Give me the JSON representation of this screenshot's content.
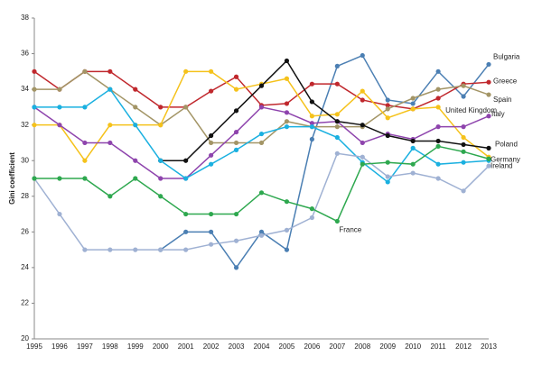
{
  "chart_data": {
    "type": "line",
    "y_label": "Gini coefficient",
    "categories": [
      "1995",
      "1996",
      "1997",
      "1998",
      "1999",
      "2000",
      "2001",
      "2002",
      "2003",
      "2004",
      "2005",
      "2006",
      "2007",
      "2008",
      "2009",
      "2010",
      "2011",
      "2012",
      "2013"
    ],
    "ylim": [
      20,
      38
    ],
    "yticks": [
      20,
      22,
      24,
      26,
      28,
      30,
      32,
      34,
      36,
      38
    ],
    "grid": false,
    "series": [
      {
        "name": "Bulgaria",
        "color": "#4b7fb3",
        "values": [
          null,
          null,
          null,
          null,
          null,
          25,
          26,
          26,
          24,
          26,
          25,
          31.2,
          35.3,
          35.9,
          33.4,
          33.2,
          35.0,
          33.6,
          35.4
        ]
      },
      {
        "name": "Greece",
        "color": "#c0282d",
        "values": [
          35,
          34,
          35,
          35,
          34,
          33,
          33,
          33.9,
          34.7,
          33.1,
          33.2,
          34.3,
          34.3,
          33.4,
          33.1,
          32.9,
          33.5,
          34.3,
          34.4
        ]
      },
      {
        "name": "Spain",
        "color": "#a39566",
        "values": [
          34,
          34,
          35,
          34,
          33,
          32,
          33,
          31,
          31,
          31,
          32.2,
          31.9,
          31.9,
          31.9,
          32.9,
          33.5,
          34.0,
          34.2,
          33.7
        ]
      },
      {
        "name": "United Kingdom",
        "color": "#f5c21b",
        "values": [
          32,
          32,
          30,
          32,
          32,
          32,
          35,
          35,
          34,
          34.3,
          34.6,
          32.5,
          32.6,
          33.9,
          32.4,
          32.9,
          33.0,
          31.3,
          30.2
        ]
      },
      {
        "name": "Italy",
        "color": "#8e44ad",
        "values": [
          33,
          32,
          31,
          31,
          30,
          29,
          29,
          30.3,
          31.6,
          33.0,
          32.7,
          32.1,
          32.2,
          31.0,
          31.5,
          31.2,
          31.9,
          31.9,
          32.5
        ]
      },
      {
        "name": "Poland",
        "color": "#111111",
        "values": [
          null,
          null,
          null,
          null,
          null,
          30,
          30,
          31.4,
          32.8,
          34.2,
          35.6,
          33.3,
          32.2,
          32.0,
          31.4,
          31.1,
          31.1,
          30.9,
          30.7
        ]
      },
      {
        "name": "Ireland",
        "color": "#1ab0e0",
        "values": [
          33,
          33,
          33,
          34,
          32,
          30,
          29,
          29.8,
          30.6,
          31.5,
          31.9,
          31.9,
          31.3,
          29.9,
          28.8,
          30.7,
          29.8,
          29.9,
          30.0
        ]
      },
      {
        "name": "Germany",
        "color": "#9fb1d3",
        "values": [
          29,
          27,
          25,
          25,
          25,
          25,
          25,
          25.3,
          25.5,
          25.8,
          26.1,
          26.8,
          30.4,
          30.2,
          29.1,
          29.3,
          29.0,
          28.3,
          29.7
        ]
      },
      {
        "name": "France",
        "color": "#2ea84f",
        "values": [
          29,
          29,
          29,
          28,
          29,
          28,
          27,
          27,
          27,
          28.2,
          27.7,
          27.3,
          26.6,
          29.8,
          29.9,
          29.8,
          30.8,
          30.5,
          30.1
        ]
      }
    ]
  }
}
